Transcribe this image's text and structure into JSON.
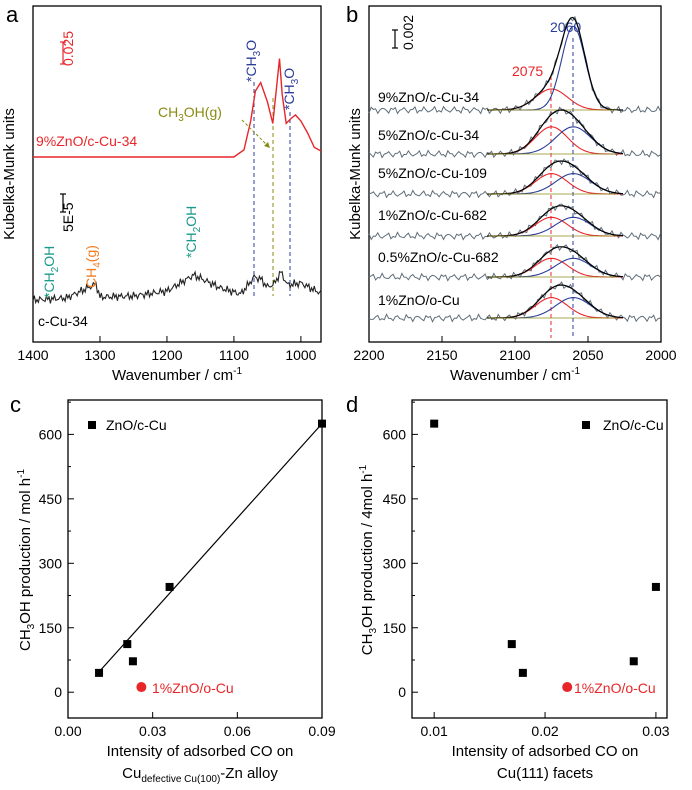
{
  "panel_labels": [
    "a",
    "b",
    "c",
    "d"
  ],
  "panel_a": {
    "ylabel": "Kubelka-Munk units",
    "xlabel_main": "Wavenumber / cm",
    "xlabel_sup": "-1",
    "scale_bar_top": "0.025",
    "scale_bar_bottom": "5E-5",
    "trace_labels": {
      "top": "9%ZnO/c-Cu-34",
      "bottom": "c-Cu-34"
    },
    "annotations": {
      "ch2oh_1350": {
        "pre": "*CH",
        "sub": "2",
        "post": "OH"
      },
      "ch4": {
        "pre": "CH",
        "sub": "4",
        "post": "(g)"
      },
      "ch2oh_1160": {
        "pre": "*CH",
        "sub": "2",
        "post": "OH"
      },
      "ch3o_1060": {
        "pre": "*CH",
        "sub": "3",
        "post": "O"
      },
      "ch3oh_g": {
        "pre": "CH",
        "sub": "3",
        "post": "OH(g)"
      },
      "ch3o_1005": {
        "pre": "*CH",
        "sub": "3",
        "post": "O"
      }
    },
    "colors": {
      "top_trace": "#e8262a",
      "ch2oh": "#1a9a8c",
      "ch4": "#f07c22",
      "ch3o": "#2b3e9a",
      "ch3oh": "#8b8b14"
    }
  },
  "panel_b": {
    "ylabel": "Kubelka-Munk units",
    "xlabel_main": "Wavenumber / cm",
    "xlabel_sup": "-1",
    "scale_bar": "0.002",
    "peak_labels": {
      "left": "2075",
      "right": "2060"
    },
    "colors": {
      "left": "#e8262a",
      "right": "#2b3e9a",
      "spectrum": "#5f6e7a"
    }
  },
  "panel_c": {
    "ylabel_main": "CH",
    "ylabel_sub": "3",
    "ylabel_rest": "OH production /   mol h",
    "ylabel_sup": "-1",
    "xlabel_line1": "Intensity of adsorbed CO on",
    "xlabel_line2_pre": "Cu",
    "xlabel_line2_sub": "defective Cu(100)",
    "xlabel_line2_post": "-Zn alloy",
    "legend_black": "ZnO/c-Cu",
    "legend_red": "1%ZnO/o-Cu"
  },
  "panel_d": {
    "ylabel_main": "CH",
    "ylabel_sub": "3",
    "ylabel_rest": "OH production / 4mol h",
    "ylabel_sup": "-1",
    "xlabel_line1": "Intensity of adsorbed CO on",
    "xlabel_line2": "Cu(111) facets",
    "legend_black": "ZnO/c-Cu",
    "legend_red": "1%ZnO/o-Cu"
  },
  "chart_data": [
    {
      "panel": "a",
      "type": "line",
      "xlim": [
        1400,
        970
      ],
      "x_ticks": [
        1400,
        1300,
        1200,
        1100,
        1000
      ],
      "series": [
        {
          "name": "9%ZnO/c-Cu-34",
          "x": [
            1400,
            1200,
            1100,
            1085,
            1075,
            1068,
            1060,
            1050,
            1042,
            1036,
            1032,
            1028,
            1022,
            1015,
            1008,
            1000,
            990,
            980,
            970
          ],
          "y": [
            0,
            0,
            0,
            0.006,
            0.03,
            0.055,
            0.062,
            0.046,
            0.028,
            0.06,
            0.082,
            0.052,
            0.028,
            0.032,
            0.035,
            0.03,
            0.02,
            0.008,
            0.005
          ]
        },
        {
          "name": "c-Cu-34",
          "x": [
            1400,
            1350,
            1306,
            1300,
            1250,
            1200,
            1160,
            1120,
            1100,
            1090,
            1080,
            1070,
            1060,
            1050,
            1040,
            1030,
            1020,
            1000,
            980,
            970
          ],
          "y": [
            0.0,
            0.2,
            1.6,
            0.3,
            0.4,
            0.9,
            2.5,
            1.2,
            0.8,
            0.6,
            1.4,
            2.3,
            2.1,
            1.3,
            1.6,
            2.8,
            1.5,
            1.7,
            1.0,
            0.7
          ]
        }
      ],
      "reference_lines": [
        1060,
        1030,
        1005
      ]
    },
    {
      "panel": "b",
      "type": "line",
      "xlim": [
        2200,
        2000
      ],
      "x_ticks": [
        2200,
        2150,
        2100,
        2050,
        2000
      ],
      "series": [
        {
          "name": "9%ZnO/c-Cu-34",
          "peak_amplitude": 0.0042
        },
        {
          "name": "5%ZnO/c-Cu-34",
          "peak_amplitude": 0.0016
        },
        {
          "name": "5%ZnO/c-Cu-109",
          "peak_amplitude": 0.0012
        },
        {
          "name": "1%ZnO/c-Cu-682",
          "peak_amplitude": 0.0011
        },
        {
          "name": "0.5%ZnO/c-Cu-682",
          "peak_amplitude": 0.0011
        },
        {
          "name": "1%ZnO/o-Cu",
          "peak_amplitude": 0.0012
        }
      ],
      "reference_lines": [
        2075,
        2060
      ]
    },
    {
      "panel": "c",
      "type": "scatter",
      "xlim": [
        0,
        0.09
      ],
      "ylim": [
        -60,
        680
      ],
      "x_ticks": [
        0.0,
        0.03,
        0.06,
        0.09
      ],
      "x_tick_labels": [
        "0.00",
        "0.03",
        "0.06",
        "0.09"
      ],
      "y_ticks": [
        0,
        150,
        300,
        450,
        600
      ],
      "series": [
        {
          "name": "ZnO/c-Cu",
          "x": [
            0.011,
            0.021,
            0.023,
            0.036,
            0.09
          ],
          "y": [
            45,
            112,
            72,
            245,
            625
          ]
        },
        {
          "name": "1%ZnO/o-Cu",
          "x": [
            0.026
          ],
          "y": [
            12
          ]
        }
      ],
      "fit_line": {
        "x": [
          0.01,
          0.09
        ],
        "y": [
          40,
          625
        ]
      }
    },
    {
      "panel": "d",
      "type": "scatter",
      "xlim": [
        0.008,
        0.031
      ],
      "ylim": [
        -60,
        680
      ],
      "x_ticks": [
        0.01,
        0.02,
        0.03
      ],
      "x_tick_labels": [
        "0.01",
        "0.02",
        "0.03"
      ],
      "y_ticks": [
        0,
        150,
        300,
        450,
        600
      ],
      "series": [
        {
          "name": "ZnO/c-Cu",
          "x": [
            0.01,
            0.017,
            0.018,
            0.028,
            0.03
          ],
          "y": [
            625,
            112,
            45,
            72,
            245
          ]
        },
        {
          "name": "1%ZnO/o-Cu",
          "x": [
            0.022
          ],
          "y": [
            12
          ]
        }
      ]
    }
  ]
}
